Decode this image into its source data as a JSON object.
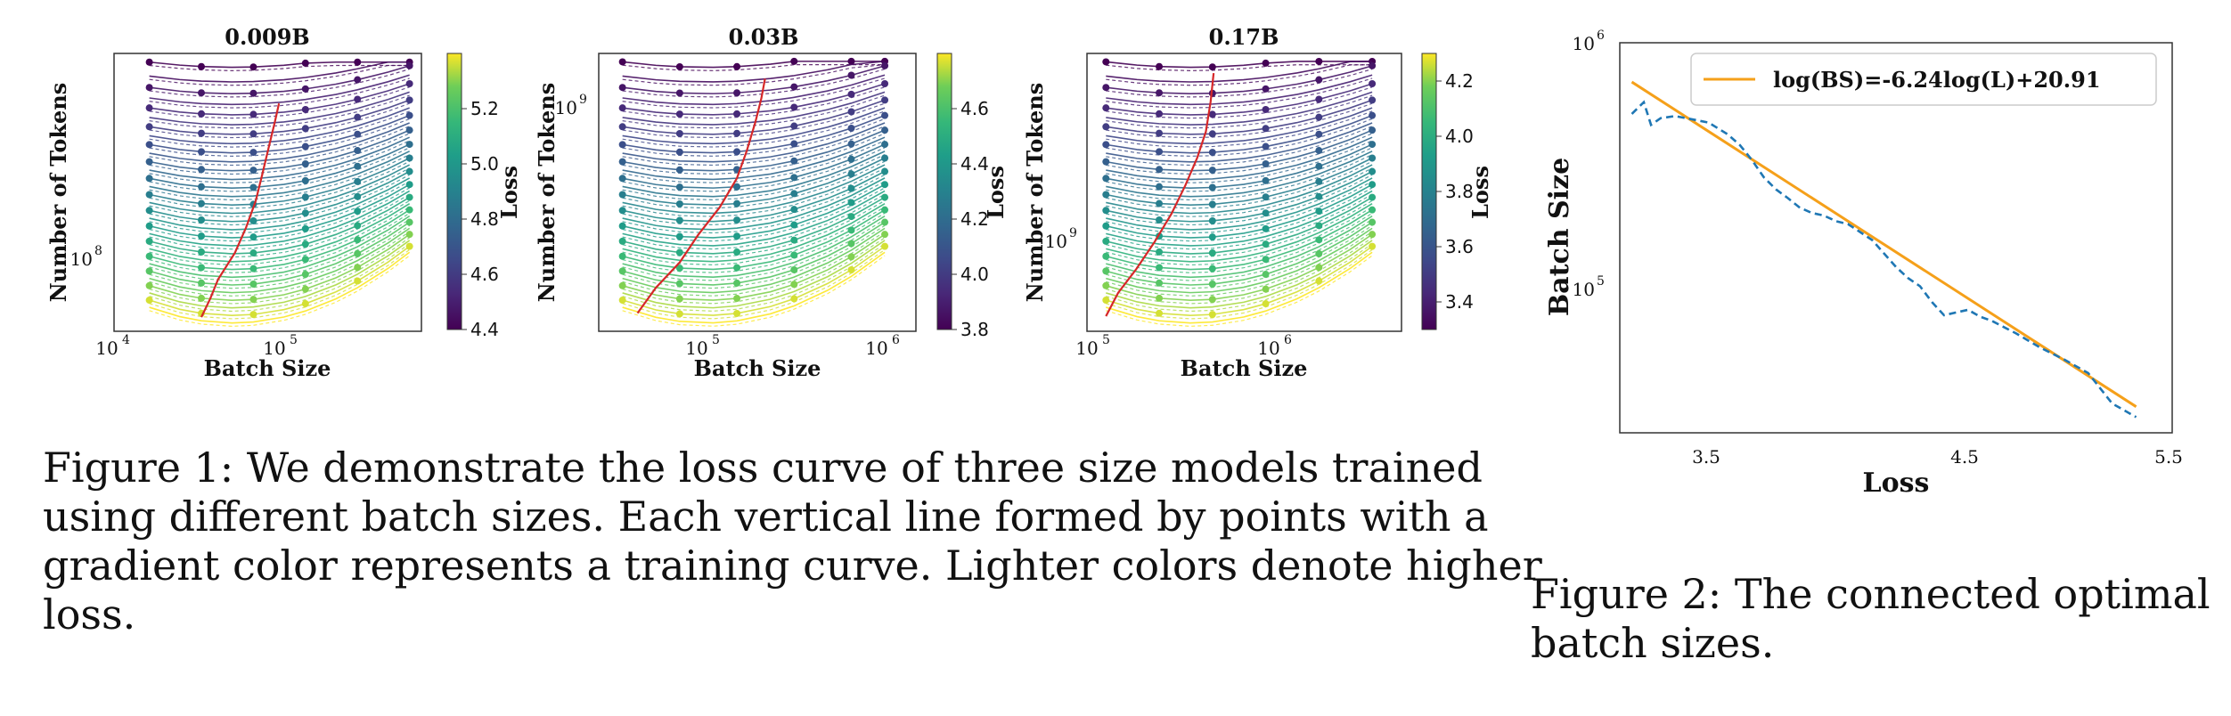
{
  "charts": [
    {
      "title": "0.009B",
      "xlabel": "Batch Size",
      "ylabel": "Number of Tokens",
      "xticks": [
        "10",
        "10"
      ],
      "xticks_exp": [
        "4",
        "5"
      ],
      "yticks": [
        "10"
      ],
      "yticks_exp": [
        "8"
      ],
      "colorbar_label": "Loss",
      "colorbar_ticks": [
        "5.2",
        "5.0",
        "4.8",
        "4.6",
        "4.4"
      ]
    },
    {
      "title": "0.03B",
      "xlabel": "Batch Size",
      "ylabel": "Number of Tokens",
      "xticks": [
        "10",
        "10"
      ],
      "xticks_exp": [
        "5",
        "6"
      ],
      "yticks": [
        "10"
      ],
      "yticks_exp": [
        "9"
      ],
      "colorbar_label": "Loss",
      "colorbar_ticks": [
        "4.6",
        "4.4",
        "4.2",
        "4.0",
        "3.8"
      ]
    },
    {
      "title": "0.17B",
      "xlabel": "Batch Size",
      "ylabel": "Number of Tokens",
      "xticks": [
        "10",
        "10"
      ],
      "xticks_exp": [
        "5",
        "6"
      ],
      "yticks": [
        "10"
      ],
      "yticks_exp": [
        "9"
      ],
      "colorbar_label": "Loss",
      "colorbar_ticks": [
        "4.2",
        "4.0",
        "3.8",
        "3.6",
        "3.4"
      ]
    }
  ],
  "chart_data": [
    {
      "type": "scatter",
      "title": "0.009B",
      "xlabel": "Batch Size",
      "ylabel": "Number of Tokens",
      "x_scale": "log",
      "y_scale": "log",
      "xlim": [
        10000,
        600000
      ],
      "ylim": [
        60000000,
        700000000
      ],
      "batch_sizes": [
        16000,
        24000,
        32000,
        48000,
        64000,
        96000,
        128000,
        192000,
        256000,
        384000,
        512000
      ],
      "loss_range": [
        4.4,
        5.4
      ],
      "colorbar_ticks": [
        5.2,
        5.0,
        4.8,
        4.6,
        4.4
      ],
      "optimal_curve_color": "#d62728",
      "optimal_curve_x": [
        32000,
        36000,
        40000,
        50000,
        58000,
        66000,
        72000,
        78000,
        85000,
        90000
      ],
      "optimal_curve_tokens": [
        68000000,
        80000000,
        95000000,
        120000000,
        150000000,
        190000000,
        240000000,
        300000000,
        380000000,
        450000000
      ]
    },
    {
      "type": "scatter",
      "title": "0.03B",
      "xlabel": "Batch Size",
      "ylabel": "Number of Tokens",
      "x_scale": "log",
      "y_scale": "log",
      "xlim": [
        30000,
        1400000
      ],
      "ylim": [
        200000000,
        1700000000
      ],
      "batch_sizes": [
        40000,
        60000,
        80000,
        120000,
        160000,
        240000,
        320000,
        480000,
        640000,
        960000
      ],
      "loss_range": [
        3.8,
        4.8
      ],
      "colorbar_ticks": [
        4.6,
        4.4,
        4.2,
        4.0,
        3.8
      ],
      "optimal_curve_color": "#d62728",
      "optimal_curve_x": [
        48000,
        60000,
        80000,
        100000,
        130000,
        160000,
        180000,
        200000,
        215000,
        225000
      ],
      "optimal_curve_tokens": [
        230000000,
        280000000,
        340000000,
        420000000,
        520000000,
        650000000,
        800000000,
        1000000000,
        1200000000,
        1400000000
      ]
    },
    {
      "type": "scatter",
      "title": "0.17B",
      "xlabel": "Batch Size",
      "ylabel": "Number of Tokens",
      "x_scale": "log",
      "y_scale": "log",
      "xlim": [
        100000,
        6000000
      ],
      "ylim": [
        400000000,
        3500000000
      ],
      "batch_sizes": [
        128000,
        192000,
        256000,
        384000,
        512000,
        768000,
        1024000,
        1536000,
        2048000,
        3072000,
        4096000
      ],
      "loss_range": [
        3.3,
        4.3
      ],
      "colorbar_ticks": [
        4.2,
        4.0,
        3.8,
        3.6,
        3.4
      ],
      "optimal_curve_color": "#d62728",
      "optimal_curve_x": [
        128000,
        150000,
        190000,
        240000,
        300000,
        360000,
        420000,
        470000,
        500000,
        520000
      ],
      "optimal_curve_tokens": [
        450000000,
        540000000,
        650000000,
        800000000,
        1000000000,
        1250000000,
        1550000000,
        1900000000,
        2400000000,
        3000000000
      ]
    },
    {
      "type": "line",
      "xlabel": "Loss",
      "ylabel": "Batch Size",
      "x_scale": "linear",
      "y_scale": "log",
      "xlim": [
        3.25,
        5.55
      ],
      "ylim": [
        25000,
        1000000
      ],
      "xticks": [
        "3.5",
        "4.5",
        "5.5"
      ],
      "yticks": [
        "10",
        "10"
      ],
      "yticks_exp": [
        "6",
        "5"
      ],
      "legend_position": "top-right",
      "series": [
        {
          "name": "log(BS)=-6.24log(L)+20.91",
          "style": "solid",
          "color": "#f5a01a",
          "x": [
            3.3,
            5.4
          ],
          "y": [
            690000,
            32000
          ]
        },
        {
          "style": "dashed",
          "color": "#1f77b4",
          "x": [
            3.3,
            3.35,
            3.38,
            3.42,
            3.48,
            3.55,
            3.62,
            3.7,
            3.75,
            3.8,
            3.85,
            3.9,
            3.95,
            4.0,
            4.05,
            4.1,
            4.15,
            4.2,
            4.3,
            4.4,
            4.45,
            4.5,
            4.55,
            4.6,
            4.65,
            4.7,
            4.75,
            4.8,
            4.9,
            5.0,
            5.1,
            5.2,
            5.3,
            5.4
          ],
          "y": [
            510000,
            570000,
            460000,
            490000,
            500000,
            485000,
            470000,
            420000,
            380000,
            330000,
            280000,
            250000,
            230000,
            210000,
            200000,
            195000,
            185000,
            180000,
            155000,
            120000,
            108000,
            100000,
            86000,
            76000,
            78000,
            80000,
            75000,
            72000,
            64000,
            56000,
            50000,
            44000,
            33000,
            29000
          ]
        }
      ]
    }
  ],
  "captions": {
    "figure1": "Figure 1: We demonstrate the loss curve of three size models trained using different batch sizes. Each vertical line formed by points with a gradient color represents a training curve. Lighter colors denote higher loss.",
    "figure2": "Figure 2: The connected optimal batch sizes."
  }
}
